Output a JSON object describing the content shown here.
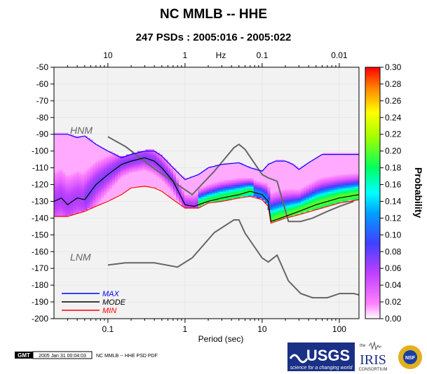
{
  "chart_data": {
    "type": "heatmap",
    "title": "NC MMLB -- HHE",
    "subtitle": "247 PSDs : 2005:016 - 2005:022",
    "xlabel": "Period (sec)",
    "x_top_label": "Hz",
    "colorbar_label": "Probability",
    "x_scale": "log",
    "xlim": [
      0.02,
      180
    ],
    "ylim": [
      -200,
      -50
    ],
    "x_ticks": [
      0.1,
      1,
      10,
      100
    ],
    "x_tick_labels": [
      "0.1",
      "1",
      "10",
      "100"
    ],
    "x_top_ticks": [
      0.1,
      1,
      10,
      100
    ],
    "x_top_tick_labels": [
      "10",
      "1",
      "0.1",
      "0.01"
    ],
    "y_ticks": [
      -50,
      -60,
      -70,
      -80,
      -90,
      -100,
      -110,
      -120,
      -130,
      -140,
      -150,
      -160,
      -170,
      -180,
      -190,
      -200
    ],
    "y_tick_labels": [
      "-50",
      "-60",
      "-70",
      "-80",
      "-90",
      "-100",
      "-110",
      "-120",
      "-130",
      "-140",
      "-150",
      "-160",
      "-170",
      "-180",
      "-190",
      "-200"
    ],
    "colorbar_ticks": [
      "0.30",
      "0.28",
      "0.26",
      "0.24",
      "0.22",
      "0.20",
      "0.18",
      "0.16",
      "0.14",
      "0.12",
      "0.10",
      "0.08",
      "0.06",
      "0.04",
      "0.02",
      "0.00"
    ],
    "colorbar_range": [
      0,
      0.3
    ],
    "legend": [
      {
        "label": "MAX",
        "color": "#0000ff"
      },
      {
        "label": "MODE",
        "color": "#000000"
      },
      {
        "label": "MIN",
        "color": "#ff0000"
      }
    ],
    "annotations": [
      {
        "label": "HNM",
        "period": 0.025,
        "db": -88
      },
      {
        "label": "LNM",
        "period": 0.025,
        "db": -164
      }
    ],
    "series": [
      {
        "name": "MAX",
        "color": "#0000ff",
        "points": [
          [
            0.02,
            -90
          ],
          [
            0.03,
            -90
          ],
          [
            0.04,
            -92
          ],
          [
            0.05,
            -91
          ],
          [
            0.07,
            -96
          ],
          [
            0.1,
            -100
          ],
          [
            0.15,
            -104
          ],
          [
            0.2,
            -102
          ],
          [
            0.3,
            -100
          ],
          [
            0.4,
            -100
          ],
          [
            0.5,
            -103
          ],
          [
            0.7,
            -110
          ],
          [
            1,
            -117
          ],
          [
            1.5,
            -114
          ],
          [
            2,
            -110
          ],
          [
            3,
            -108
          ],
          [
            5,
            -107
          ],
          [
            7,
            -110
          ],
          [
            10,
            -112
          ],
          [
            12,
            -108
          ],
          [
            15,
            -106
          ],
          [
            20,
            -106
          ],
          [
            25,
            -108
          ],
          [
            30,
            -111
          ],
          [
            40,
            -107
          ],
          [
            60,
            -102
          ],
          [
            100,
            -102
          ],
          [
            180,
            -102
          ]
        ]
      },
      {
        "name": "MODE",
        "color": "#000000",
        "points": [
          [
            0.02,
            -130
          ],
          [
            0.025,
            -128
          ],
          [
            0.03,
            -132
          ],
          [
            0.04,
            -128
          ],
          [
            0.05,
            -129
          ],
          [
            0.07,
            -120
          ],
          [
            0.1,
            -114
          ],
          [
            0.15,
            -108
          ],
          [
            0.2,
            -106
          ],
          [
            0.3,
            -104
          ],
          [
            0.4,
            -106
          ],
          [
            0.5,
            -110
          ],
          [
            0.7,
            -118
          ],
          [
            1,
            -132
          ],
          [
            1.3,
            -133
          ],
          [
            2,
            -130
          ],
          [
            3,
            -128
          ],
          [
            5,
            -126
          ],
          [
            7,
            -124
          ],
          [
            10,
            -126
          ],
          [
            12,
            -130
          ],
          [
            13,
            -142
          ],
          [
            15,
            -141
          ],
          [
            20,
            -139
          ],
          [
            30,
            -136
          ],
          [
            50,
            -132
          ],
          [
            100,
            -128
          ],
          [
            180,
            -126
          ]
        ]
      },
      {
        "name": "MIN",
        "color": "#ff0000",
        "points": [
          [
            0.02,
            -139
          ],
          [
            0.03,
            -139
          ],
          [
            0.05,
            -136
          ],
          [
            0.07,
            -133
          ],
          [
            0.1,
            -130
          ],
          [
            0.15,
            -126
          ],
          [
            0.2,
            -122
          ],
          [
            0.3,
            -121
          ],
          [
            0.4,
            -122
          ],
          [
            0.5,
            -124
          ],
          [
            0.7,
            -129
          ],
          [
            1,
            -134
          ],
          [
            1.5,
            -134
          ],
          [
            2,
            -131
          ],
          [
            3,
            -130
          ],
          [
            5,
            -128
          ],
          [
            7,
            -127
          ],
          [
            10,
            -129
          ],
          [
            12,
            -133
          ],
          [
            13,
            -143
          ],
          [
            15,
            -142
          ],
          [
            20,
            -140
          ],
          [
            30,
            -138
          ],
          [
            50,
            -135
          ],
          [
            100,
            -131
          ],
          [
            180,
            -129
          ]
        ]
      },
      {
        "name": "HNM",
        "color": "#666666",
        "points": [
          [
            0.1,
            -91.5
          ],
          [
            0.17,
            -97.4
          ],
          [
            0.4,
            -110.5
          ],
          [
            0.8,
            -120
          ],
          [
            1.24,
            -126
          ],
          [
            2.4,
            -112
          ],
          [
            4.3,
            -98
          ],
          [
            5,
            -96
          ],
          [
            6,
            -99
          ],
          [
            10,
            -114
          ],
          [
            12,
            -116
          ],
          [
            15.6,
            -118
          ],
          [
            21.9,
            -142
          ],
          [
            31.6,
            -142
          ],
          [
            45,
            -140
          ],
          [
            70,
            -136
          ],
          [
            101,
            -133
          ],
          [
            154,
            -130
          ]
        ]
      },
      {
        "name": "LNM",
        "color": "#666666",
        "points": [
          [
            0.1,
            -168
          ],
          [
            0.17,
            -166.7
          ],
          [
            0.4,
            -166.7
          ],
          [
            0.8,
            -169.2
          ],
          [
            1.24,
            -163.7
          ],
          [
            2.4,
            -148.6
          ],
          [
            4.3,
            -141.1
          ],
          [
            5,
            -141.1
          ],
          [
            6,
            -149
          ],
          [
            10,
            -163.8
          ],
          [
            12,
            -166.2
          ],
          [
            15.6,
            -162.1
          ],
          [
            21.9,
            -177.5
          ],
          [
            31.6,
            -185
          ],
          [
            45,
            -187.5
          ],
          [
            70,
            -187.5
          ],
          [
            101,
            -185
          ],
          [
            154,
            -185
          ],
          [
            180,
            -185.8
          ]
        ]
      }
    ]
  },
  "footer": {
    "gmt_label": "GMT",
    "timestamp": "2005 Jan 31 00:04:03",
    "caption": "NC MMLB -- HHE PSD PDF"
  },
  "logos": {
    "usgs_text": "USGS",
    "usgs_tagline": "science for a changing world",
    "iris_text": "IRIS",
    "iris_sub": "CONSORTIUM",
    "iris_the": "the",
    "nsf_text": "NSF"
  }
}
